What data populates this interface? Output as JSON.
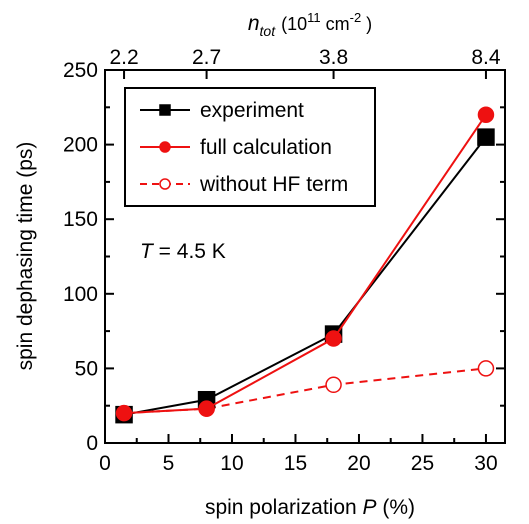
{
  "chart_data": {
    "type": "line",
    "xlabel": "spin polarization P (%)",
    "xlabel_plain": "spin polarization ",
    "xlabel_var": "P",
    "xlabel_unit": " (%)",
    "ylabel": "spin dephasing time (ps)",
    "top_axis_label": {
      "var": "n",
      "sub": "tot",
      "text": "(10",
      "exp1": "11",
      "unit": " cm",
      "exp2": "-2",
      "close": " )"
    },
    "xlim": [
      0,
      31.5
    ],
    "ylim": [
      0,
      250
    ],
    "x_ticks": [
      0,
      5,
      10,
      15,
      20,
      25,
      30
    ],
    "y_ticks": [
      0,
      50,
      100,
      150,
      200,
      250
    ],
    "top_ticks": [
      {
        "x": 1.5,
        "label": "2.2"
      },
      {
        "x": 8,
        "label": "2.7"
      },
      {
        "x": 18,
        "label": "3.8"
      },
      {
        "x": 30,
        "label": "8.4"
      }
    ],
    "annotation": {
      "var": "T",
      "text": " = 4.5 K"
    },
    "legend_position": "top-left",
    "series": [
      {
        "name": "experiment",
        "color": "#000000",
        "marker": "square",
        "filled": true,
        "dashed": false,
        "x": [
          1.5,
          8,
          18,
          30
        ],
        "y": [
          19,
          29,
          73,
          205
        ]
      },
      {
        "name": "full calculation",
        "color": "#ee1111",
        "marker": "circle",
        "filled": true,
        "dashed": false,
        "x": [
          1.5,
          8,
          18,
          30
        ],
        "y": [
          20,
          23,
          70,
          220
        ]
      },
      {
        "name": "without HF term",
        "color": "#ee1111",
        "marker": "circle",
        "filled": false,
        "dashed": true,
        "x": [
          1.5,
          8,
          18,
          30
        ],
        "y": [
          20,
          23,
          39,
          50
        ]
      }
    ]
  }
}
